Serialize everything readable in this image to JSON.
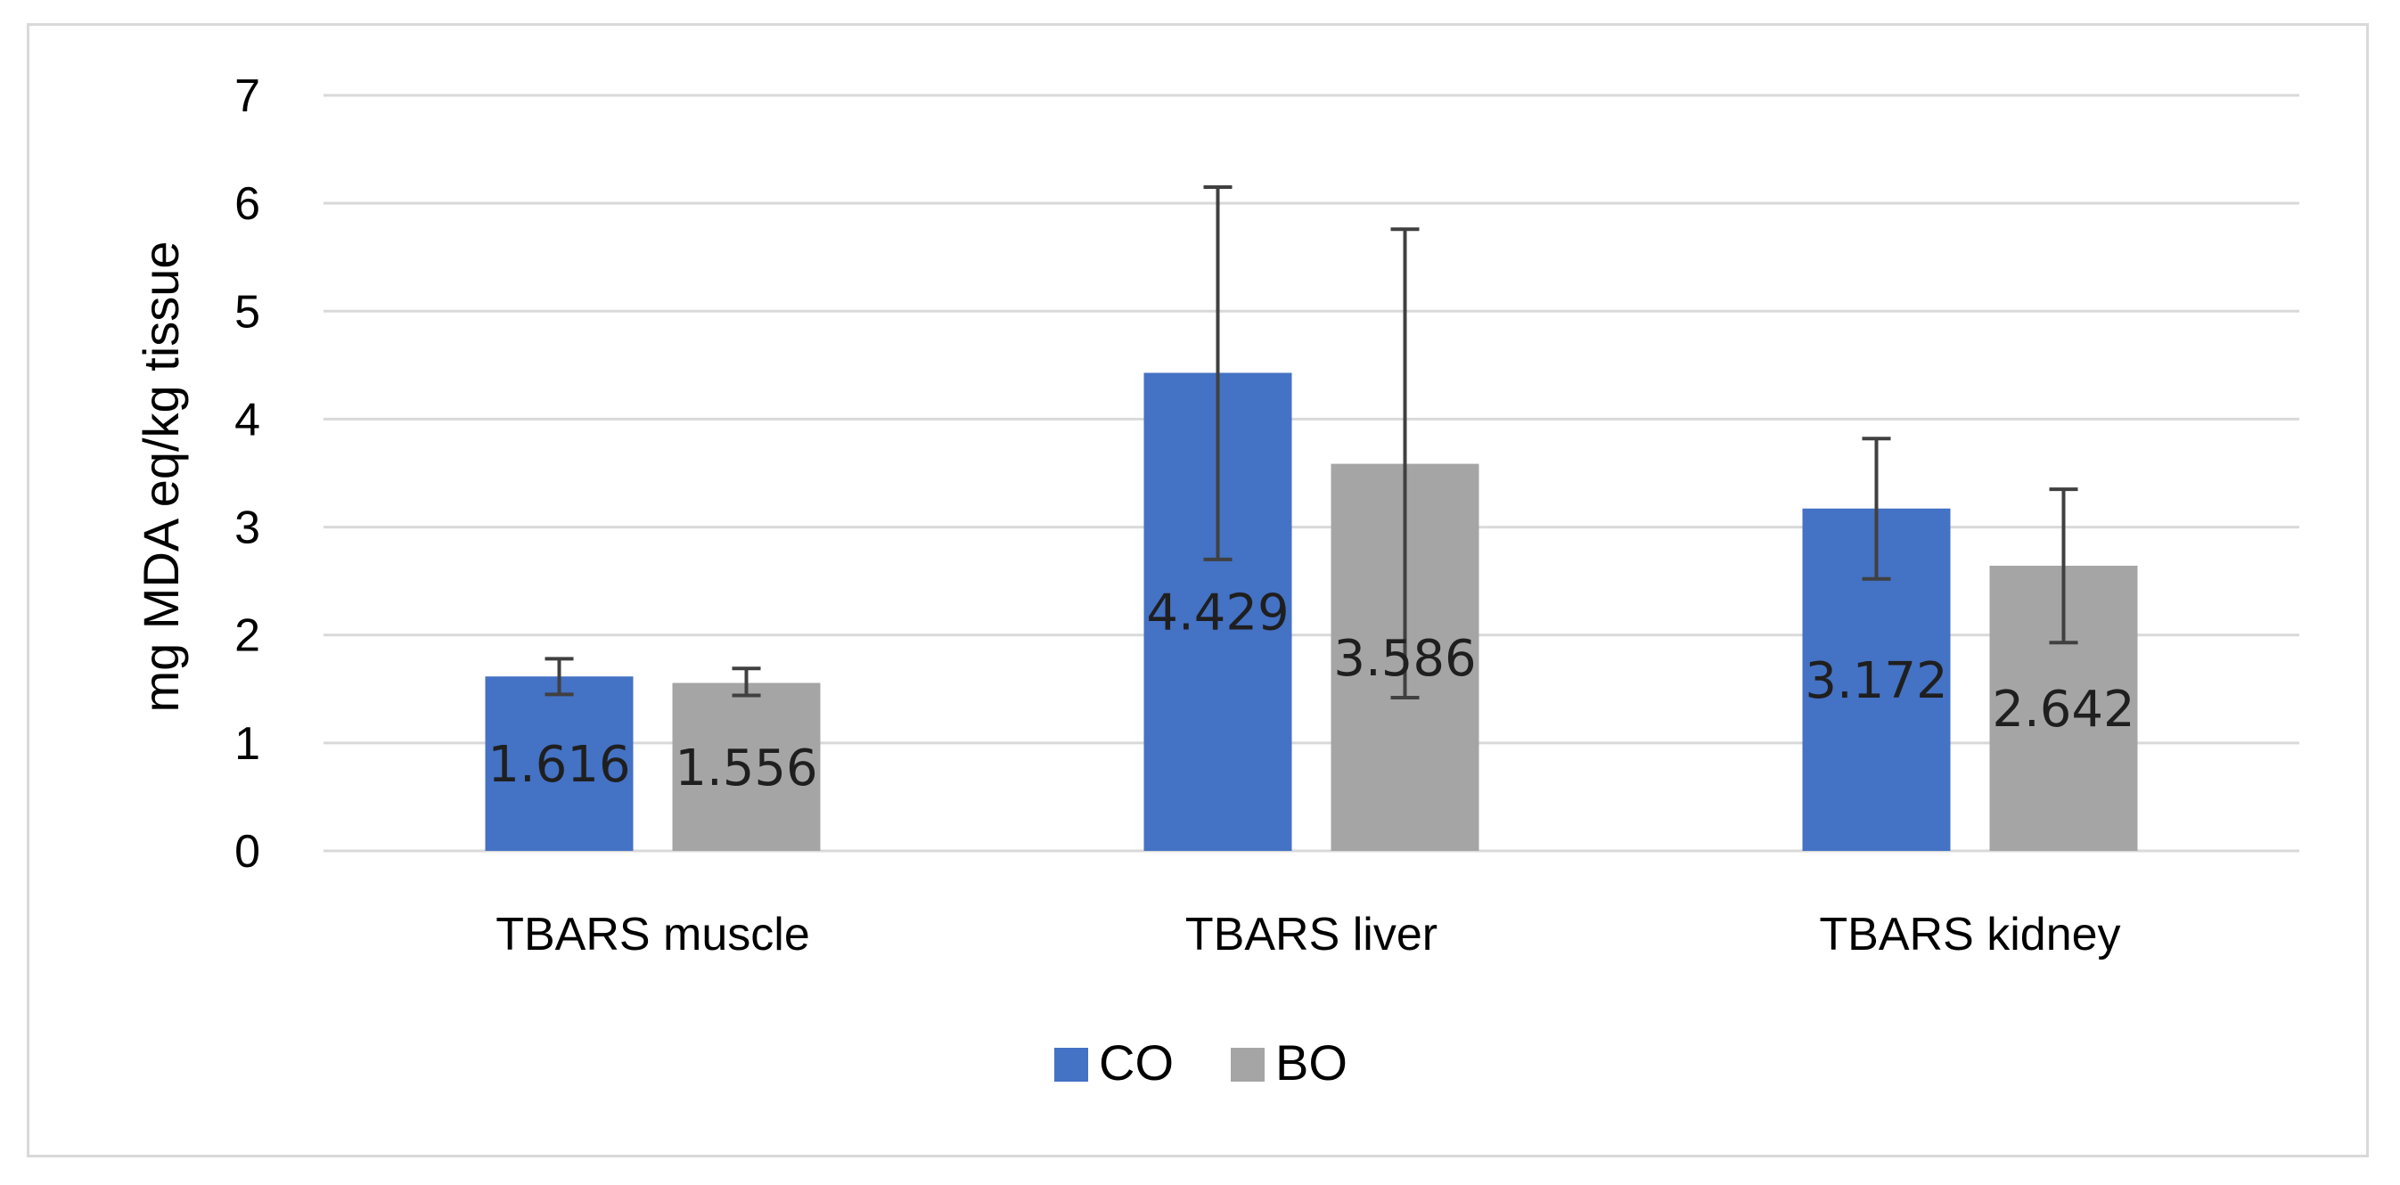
{
  "chart_data": {
    "type": "bar",
    "title": "",
    "xlabel": "",
    "ylabel": "mg MDA eq/kg tissue",
    "ylim": [
      0,
      7
    ],
    "yticks": [
      "0",
      "1",
      "2",
      "3",
      "4",
      "5",
      "6",
      "7"
    ],
    "grid": true,
    "legend_position": "bottom",
    "categories": [
      "TBARS  muscle",
      "TBARS  liver",
      "TBARS  kidney"
    ],
    "series": [
      {
        "name": "CO",
        "color": "#4472c4",
        "values": [
          1.616,
          4.429,
          3.172
        ],
        "labels": [
          "1.616",
          "4.429",
          "3.172"
        ],
        "error_low": [
          1.45,
          2.7,
          2.52
        ],
        "error_high": [
          1.78,
          6.15,
          3.82
        ]
      },
      {
        "name": "BO",
        "color": "#a5a5a5",
        "values": [
          1.556,
          3.586,
          2.642
        ],
        "labels": [
          "1.556",
          "3.586",
          "2.642"
        ],
        "error_low": [
          1.44,
          1.42,
          1.93
        ],
        "error_high": [
          1.69,
          5.76,
          3.35
        ]
      }
    ]
  }
}
